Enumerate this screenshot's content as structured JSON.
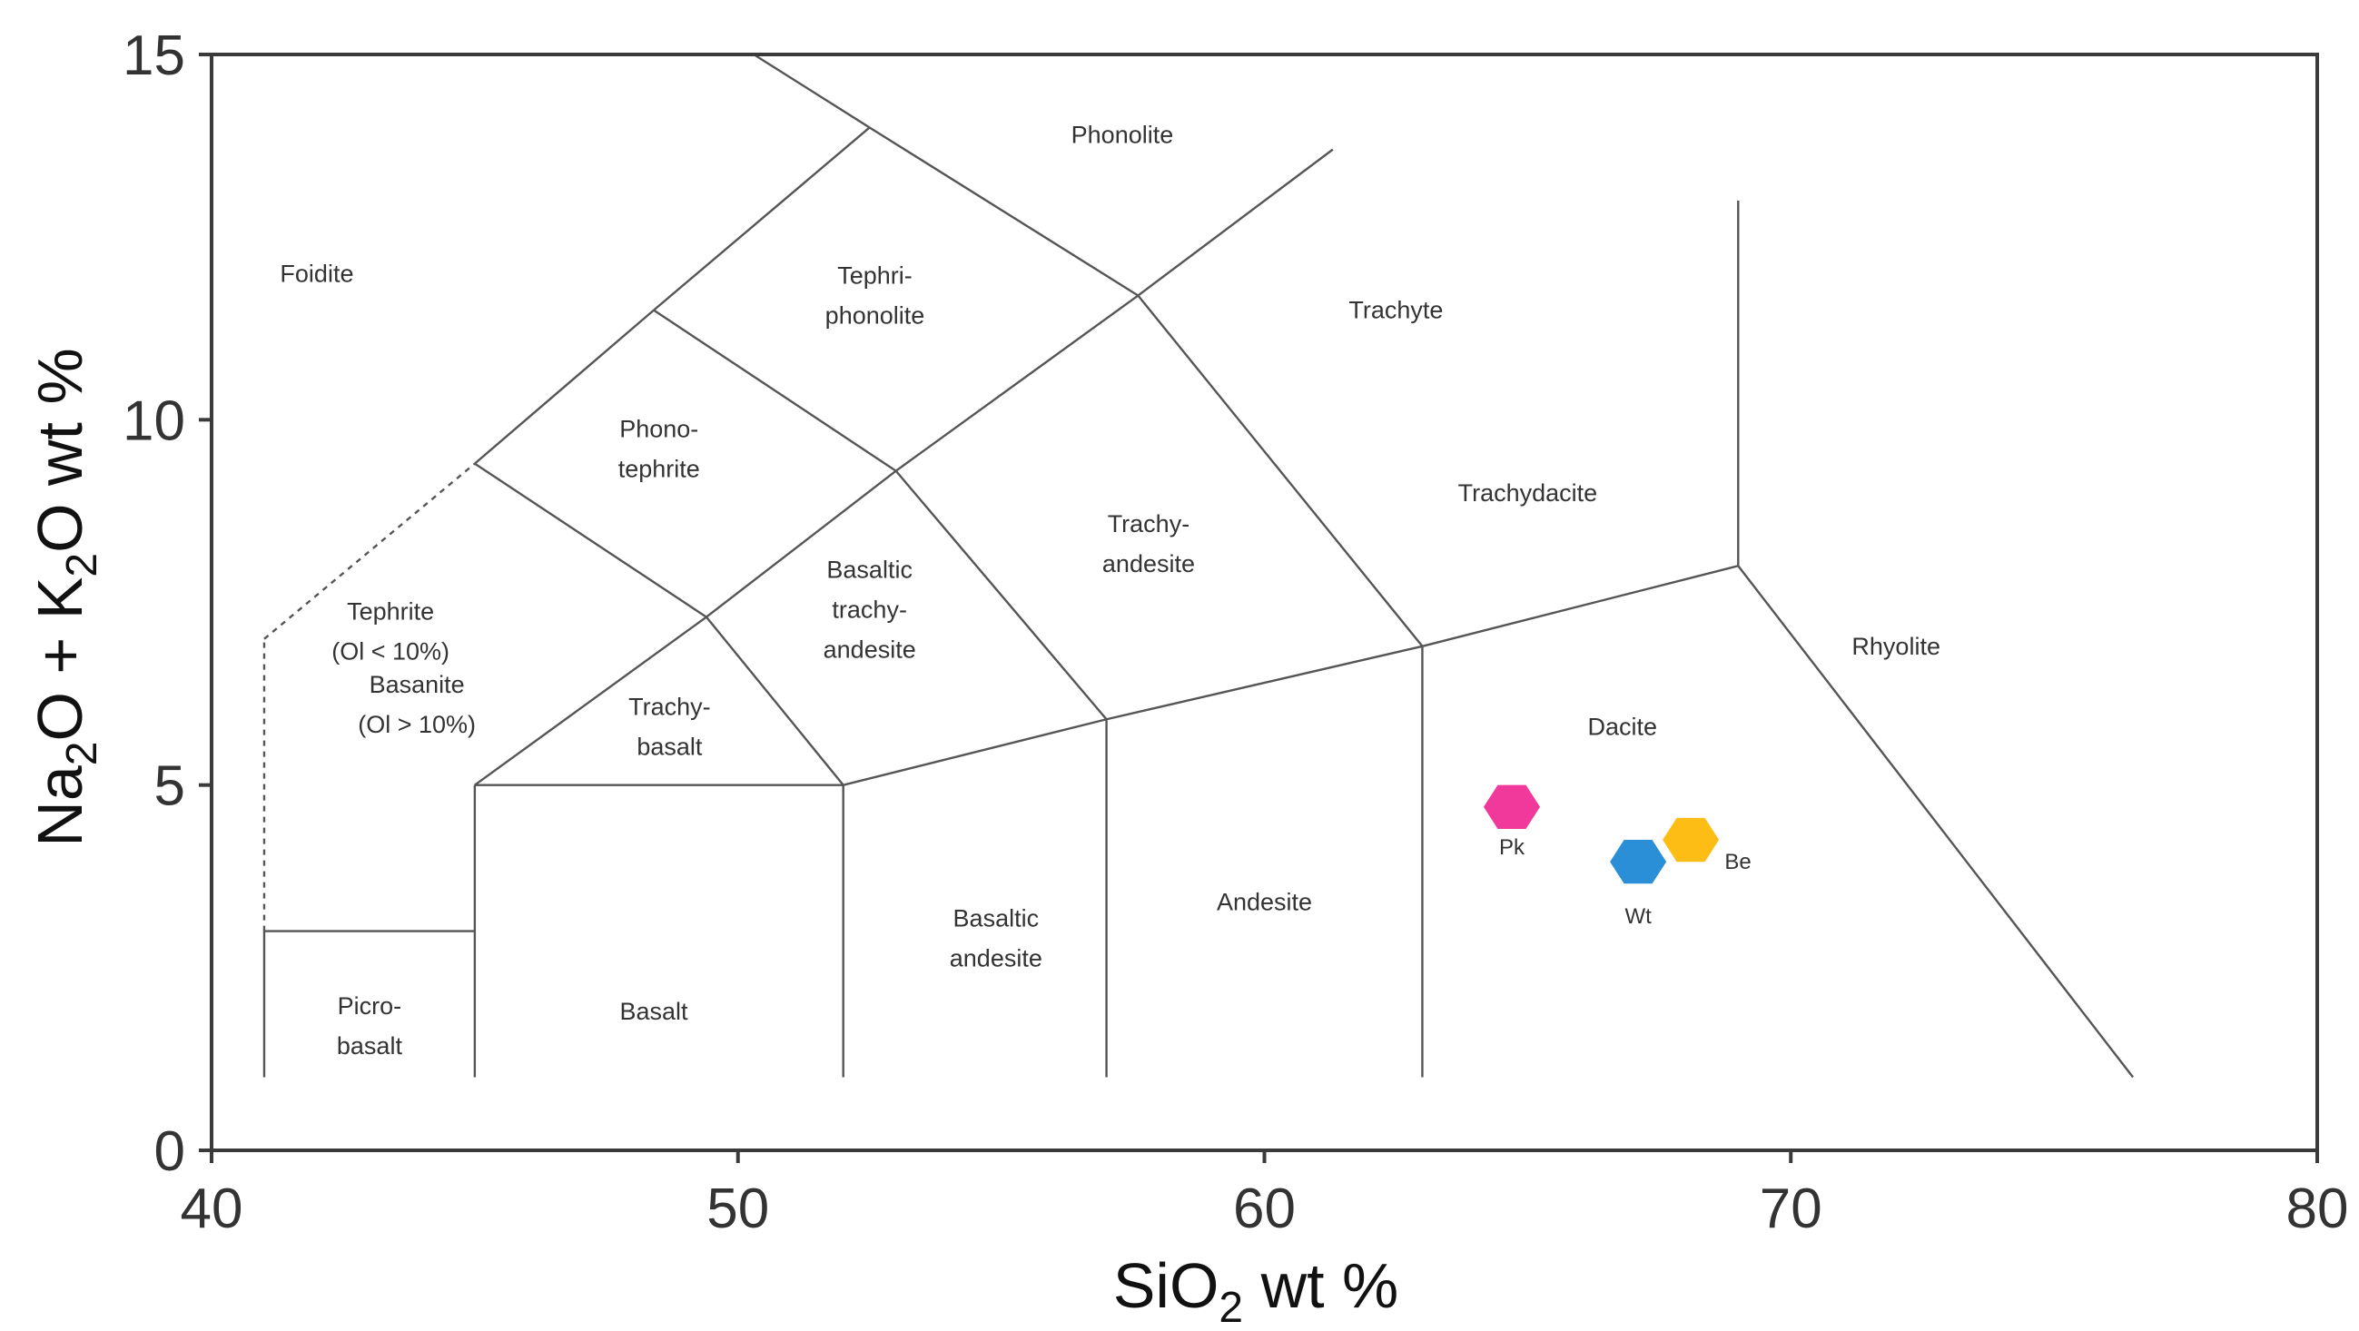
{
  "chart_data": {
    "type": "scatter",
    "title": "",
    "xlabel": "SiO2 wt %",
    "ylabel": "Na2O + K2O wt %",
    "xlabel_parts": {
      "base": "SiO",
      "sub": "2",
      "rest": " wt %"
    },
    "ylabel_parts": {
      "a": "Na",
      "a_sub": "2",
      "b": "O + K",
      "b_sub": "2",
      "c": "O wt %"
    },
    "xlim": [
      40,
      80
    ],
    "ylim": [
      0,
      15
    ],
    "xticks": [
      40,
      50,
      60,
      70,
      80
    ],
    "yticks": [
      0,
      5,
      10,
      15
    ],
    "grid": false,
    "boundaries": [
      [
        [
          41,
          3
        ],
        [
          45,
          3
        ]
      ],
      [
        [
          41,
          1
        ],
        [
          41,
          3
        ]
      ],
      [
        [
          45,
          1
        ],
        [
          45,
          5
        ]
      ],
      [
        [
          45,
          5
        ],
        [
          52,
          5
        ]
      ],
      [
        [
          52,
          1
        ],
        [
          52,
          5
        ]
      ],
      [
        [
          57,
          1
        ],
        [
          57,
          5.9
        ]
      ],
      [
        [
          63,
          1
        ],
        [
          63,
          6.9
        ]
      ],
      [
        [
          69,
          8
        ],
        [
          69,
          13
        ]
      ],
      [
        [
          45,
          5
        ],
        [
          49.4,
          7.3
        ]
      ],
      [
        [
          49.4,
          7.3
        ],
        [
          52,
          5
        ]
      ],
      [
        [
          52,
          5
        ],
        [
          57,
          5.9
        ]
      ],
      [
        [
          57,
          5.9
        ],
        [
          63,
          6.9
        ]
      ],
      [
        [
          63,
          6.9
        ],
        [
          69,
          8
        ]
      ],
      [
        [
          69,
          8
        ],
        [
          76.5,
          1
        ]
      ],
      [
        [
          49.4,
          7.3
        ],
        [
          53,
          9.3
        ]
      ],
      [
        [
          53,
          9.3
        ],
        [
          57,
          5.9
        ]
      ],
      [
        [
          53,
          9.3
        ],
        [
          57.6,
          11.7
        ]
      ],
      [
        [
          57.6,
          11.7
        ],
        [
          63,
          6.9
        ]
      ],
      [
        [
          57.6,
          11.7
        ],
        [
          61.3,
          13.7
        ]
      ],
      [
        [
          45,
          9.4
        ],
        [
          49.4,
          7.3
        ]
      ],
      [
        [
          45,
          9.4
        ],
        [
          48.4,
          11.5
        ]
      ],
      [
        [
          48.4,
          11.5
        ],
        [
          53,
          9.3
        ]
      ],
      [
        [
          48.4,
          11.5
        ],
        [
          52.5,
          14
        ]
      ],
      [
        [
          52.5,
          14
        ],
        [
          57.6,
          11.7
        ]
      ],
      [
        [
          50.3,
          15
        ],
        [
          52.5,
          14
        ]
      ]
    ],
    "dashed_boundaries": [
      [
        [
          41,
          3
        ],
        [
          41,
          7
        ]
      ],
      [
        [
          41,
          7
        ],
        [
          45,
          9.4
        ]
      ]
    ],
    "field_labels": [
      {
        "lines": [
          "Foidite"
        ],
        "x": 42,
        "y": 12
      },
      {
        "lines": [
          "Phonolite"
        ],
        "x": 57.3,
        "y": 13.9
      },
      {
        "lines": [
          "Tephri-",
          "phonolite"
        ],
        "x": 52.6,
        "y": 11.7
      },
      {
        "lines": [
          "Trachyte"
        ],
        "x": 62.5,
        "y": 11.5
      },
      {
        "lines": [
          "Phono-",
          "tephrite"
        ],
        "x": 48.5,
        "y": 9.6
      },
      {
        "lines": [
          "Trachy-",
          "andesite"
        ],
        "x": 57.8,
        "y": 8.3
      },
      {
        "lines": [
          "Trachydacite"
        ],
        "x": 65,
        "y": 9
      },
      {
        "lines": [
          "Tephrite",
          "(Ol < 10%)"
        ],
        "x": 43.4,
        "y": 7.1
      },
      {
        "lines": [
          "Basanite",
          "(Ol > 10%)"
        ],
        "x": 43.9,
        "y": 6.1
      },
      {
        "lines": [
          "Basaltic",
          "trachy-",
          "andesite"
        ],
        "x": 52.5,
        "y": 7.4
      },
      {
        "lines": [
          "Trachy-",
          "basalt"
        ],
        "x": 48.7,
        "y": 5.8
      },
      {
        "lines": [
          "Rhyolite"
        ],
        "x": 72,
        "y": 6.9
      },
      {
        "lines": [
          "Dacite"
        ],
        "x": 66.8,
        "y": 5.8
      },
      {
        "lines": [
          "Andesite"
        ],
        "x": 60,
        "y": 3.4
      },
      {
        "lines": [
          "Basaltic",
          "andesite"
        ],
        "x": 54.9,
        "y": 2.9
      },
      {
        "lines": [
          "Basalt"
        ],
        "x": 48.4,
        "y": 1.9
      },
      {
        "lines": [
          "Picro-",
          "basalt"
        ],
        "x": 43,
        "y": 1.7
      }
    ],
    "series": [
      {
        "name": "Pk",
        "x": 64.7,
        "y": 4.7,
        "color": "#f0399a",
        "label": "Pk"
      },
      {
        "name": "Wt",
        "x": 67.1,
        "y": 3.95,
        "color": "#2a8fd6",
        "label": "Wt"
      },
      {
        "name": "Be",
        "x": 68.1,
        "y": 4.25,
        "color": "#fdbd14",
        "label": "Be"
      }
    ]
  }
}
